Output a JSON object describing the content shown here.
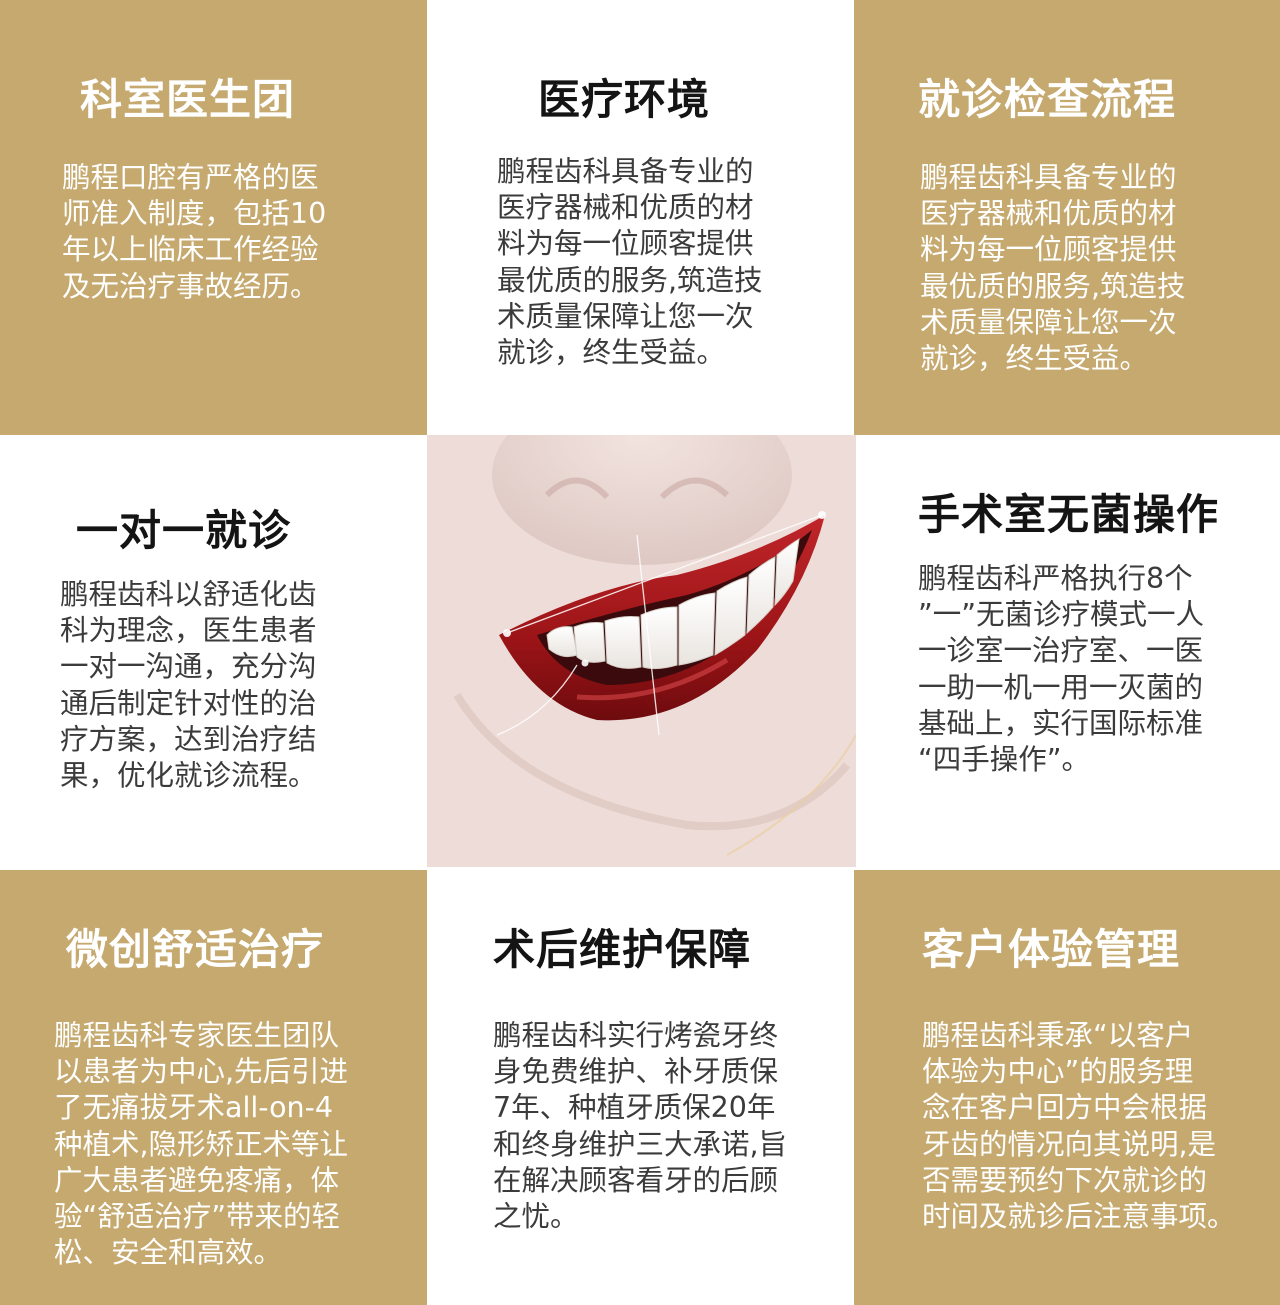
{
  "cells": {
    "doctors": {
      "title": "科室医生团",
      "body": "鹏程口腔有严格的医\n师准入制度，包括10\n年以上临床工作经验\n及无治疗事故经历。"
    },
    "environment": {
      "title": "医疗环境",
      "body": "鹏程齿科具备专业的\n医疗器械和优质的材\n料为每一位顾客提供\n最优质的服务,筑造技\n术质量保障让您一次\n就诊，终生受益。"
    },
    "process": {
      "title": "就诊检查流程",
      "body": "鹏程齿科具备专业的\n医疗器械和优质的材\n料为每一位顾客提供\n最优质的服务,筑造技\n术质量保障让您一次\n就诊，终生受益。"
    },
    "one_on_one": {
      "title": "一对一就诊",
      "body": "鹏程齿科以舒适化齿\n科为理念，医生患者\n一对一沟通，充分沟\n通后制定针对性的治\n疗方案，达到治疗结\n果，优化就诊流程。"
    },
    "sterile": {
      "title": "手术室无菌操作",
      "body": "鹏程齿科严格执行8个\n”一”无菌诊疗模式一人\n一诊室一治疗室、一医\n一助一机一用一灭菌的\n基础上，实行国际标准\n“四手操作”。"
    },
    "minimally_invasive": {
      "title": "微创舒适治疗",
      "body": "鹏程齿科专家医生团队\n以患者为中心,先后引进\n了无痛拔牙术all-on-4\n种植术,隐形矫正术等让\n广大患者避免疼痛，体\n验“舒适治疗”带来的轻\n松、安全和高效。"
    },
    "aftercare": {
      "title": "术后维护保障",
      "body": "鹏程齿科实行烤瓷牙终\n身免费维护、补牙质保\n7年、种植牙质保20年\n和终身维护三大承诺,旨\n在解决顾客看牙的后顾\n之忧。"
    },
    "experience": {
      "title": "客户体验管理",
      "body": "鹏程齿科秉承“以客户\n体验为中心”的服务理\n念在客户回方中会根据\n牙齿的情况向其说明,是\n否需要预约下次就诊的\n时间及就诊后注意事项。"
    }
  },
  "colors": {
    "gold": "#c5a96f",
    "white": "#ffffff",
    "lip_red": "#a51c1f"
  },
  "photo": {
    "subject": "smile-with-red-lips"
  }
}
